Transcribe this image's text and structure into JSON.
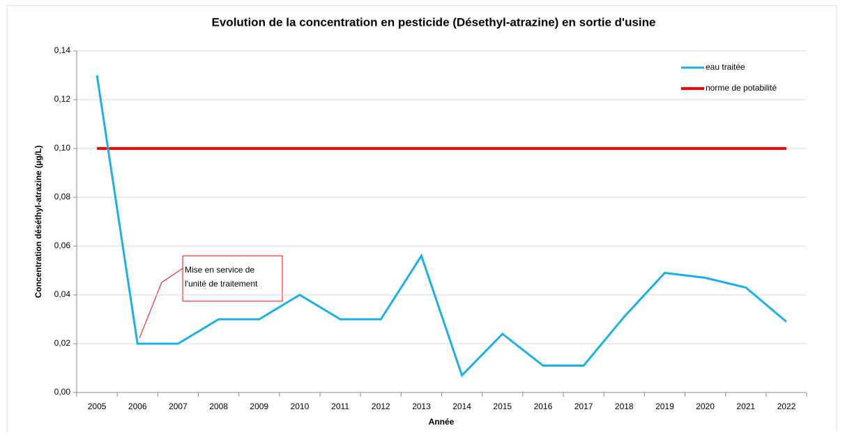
{
  "chart_data": {
    "type": "line",
    "title": "Evolution de la concentration en pesticide (Désethyl-atrazine) en sortie d'usine",
    "x_label": "Année",
    "y_label": "Concentration déséthyl-atrazine (µg/L)",
    "categories": [
      "2005",
      "2006",
      "2007",
      "2008",
      "2009",
      "2010",
      "2011",
      "2012",
      "2013",
      "2014",
      "2015",
      "2016",
      "2017",
      "2018",
      "2019",
      "2020",
      "2021",
      "2022"
    ],
    "series": [
      {
        "name": "eau traitée",
        "color": "#1aafe6",
        "values": [
          0.13,
          0.02,
          0.02,
          0.03,
          0.03,
          0.04,
          0.03,
          0.03,
          0.056,
          0.007,
          0.024,
          0.011,
          0.011,
          0.031,
          0.049,
          0.047,
          0.043,
          0.029
        ]
      },
      {
        "name": "norme de potabilité",
        "color": "#ff0000",
        "values": [
          0.1,
          0.1,
          0.1,
          0.1,
          0.1,
          0.1,
          0.1,
          0.1,
          0.1,
          0.1,
          0.1,
          0.1,
          0.1,
          0.1,
          0.1,
          0.1,
          0.1,
          0.1
        ]
      }
    ],
    "ylim": [
      0,
      0.14
    ],
    "yticks": [
      {
        "value": 0,
        "label": "0,00"
      },
      {
        "value": 0.02,
        "label": "0,02"
      },
      {
        "value": 0.04,
        "label": "0,04"
      },
      {
        "value": 0.06,
        "label": "0,06"
      },
      {
        "value": 0.08,
        "label": "0,08"
      },
      {
        "value": 0.1,
        "label": "0,10"
      },
      {
        "value": 0.12,
        "label": "0,12"
      },
      {
        "value": 0.14,
        "label": "0,14"
      }
    ],
    "grid": true,
    "legend": "top-right",
    "annotation": [
      "Mise en service de",
      "l'unité de traitement"
    ]
  }
}
